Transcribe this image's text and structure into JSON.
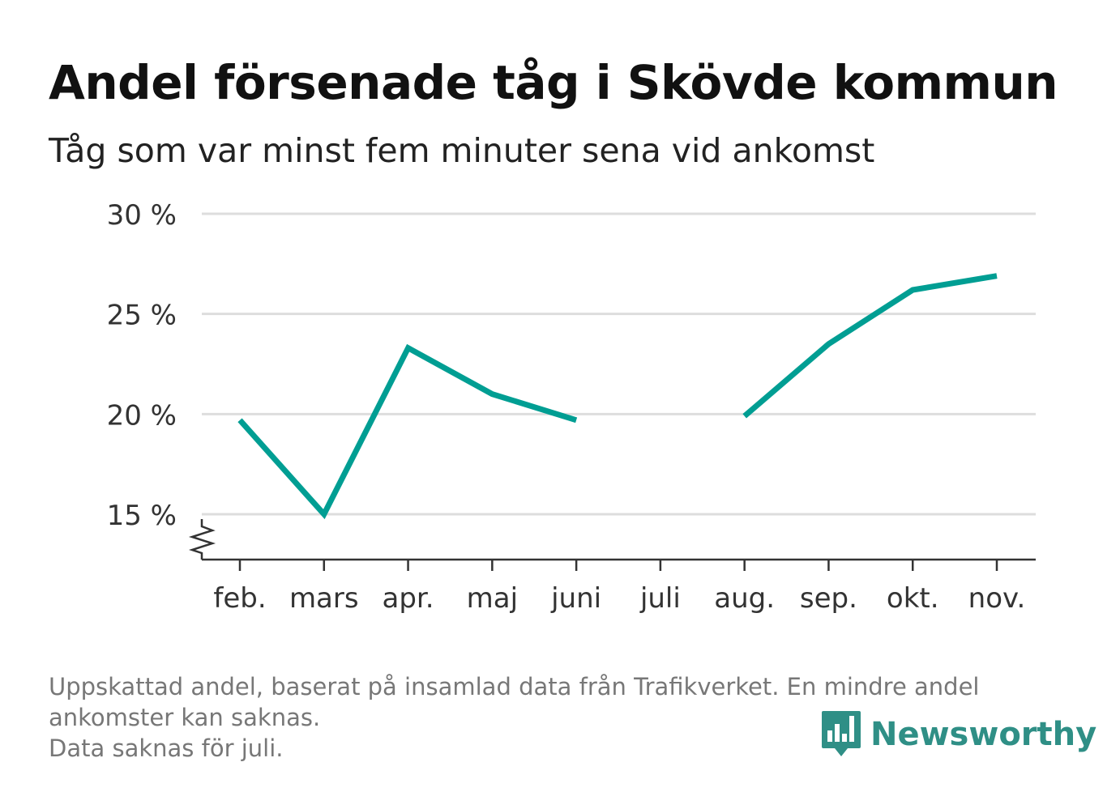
{
  "header": {
    "title": "Andel försenade tåg i Skövde kommun",
    "subtitle": "Tåg som var minst fem minuter sena vid ankomst"
  },
  "chart_data": {
    "type": "line",
    "title": "Andel försenade tåg i Skövde kommun",
    "subtitle": "Tåg som var minst fem minuter sena vid ankomst",
    "categories": [
      "feb.",
      "mars",
      "apr.",
      "maj",
      "juni",
      "juli",
      "aug.",
      "sep.",
      "okt.",
      "nov."
    ],
    "series": [
      {
        "values": [
          19.7,
          15.0,
          23.3,
          21.0,
          19.7,
          null,
          19.9,
          23.5,
          26.2,
          26.9
        ]
      }
    ],
    "yticks": [
      15,
      20,
      25,
      30
    ],
    "ytick_labels": [
      "15 %",
      "20 %",
      "25 %",
      "30 %"
    ],
    "ylim": [
      12.8,
      30
    ],
    "y_axis_break": true,
    "grid": true,
    "line_color": "#009e93",
    "grid_color": "#dddddd",
    "axis_color": "#333333"
  },
  "footer": {
    "note_line1": "Uppskattad andel, baserat på insamlad data från Trafikverket. En mindre andel",
    "note_line2": "ankomster kan saknas.",
    "note_line3": "Data saknas för juli."
  },
  "brand": {
    "name": "Newsworthy",
    "icon": "bar-chart-speech-bubble-icon",
    "color": "#2f8f86"
  }
}
